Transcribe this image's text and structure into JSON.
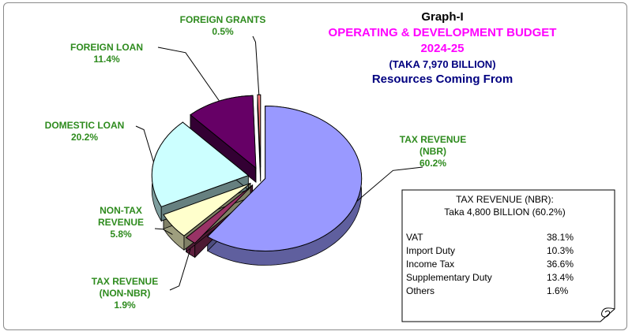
{
  "chart_data": {
    "type": "pie",
    "title": "Graph-I",
    "subtitle_lines": [
      "OPERATING & DEVELOPMENT BUDGET",
      "2024-25",
      "(TAKA 7,970 BILLION)",
      "Resources Coming From"
    ],
    "slices": [
      {
        "label_lines": [
          "TAX REVENUE",
          "(NBR)"
        ],
        "pct_text": "60.2%",
        "value": 60.2,
        "color": "#9999ff"
      },
      {
        "label_lines": [
          "TAX REVENUE",
          "(NON-NBR)"
        ],
        "pct_text": "1.9%",
        "value": 1.9,
        "color": "#993366"
      },
      {
        "label_lines": [
          "NON-TAX",
          "REVENUE"
        ],
        "pct_text": "5.8%",
        "value": 5.8,
        "color": "#ffffcc"
      },
      {
        "label_lines": [
          "DOMESTIC LOAN"
        ],
        "pct_text": "20.2%",
        "value": 20.2,
        "color": "#ccffff"
      },
      {
        "label_lines": [
          "FOREIGN LOAN"
        ],
        "pct_text": "11.4%",
        "value": 11.4,
        "color": "#660066"
      },
      {
        "label_lines": [
          "FOREIGN  GRANTS"
        ],
        "pct_text": "0.5%",
        "value": 0.5,
        "color": "#ff8080"
      }
    ],
    "legend": "none"
  },
  "colors": {
    "title_magenta": "#ff00ff",
    "title_navy": "#000080",
    "label_green": "#2e8b1e"
  },
  "note": {
    "heading": "TAX REVENUE (NBR):",
    "subheading": "Taka  4,800 BILLION  (60.2%)",
    "rows": [
      {
        "name": "VAT",
        "value": "38.1%"
      },
      {
        "name": "Import Duty",
        "value": "10.3%"
      },
      {
        "name": "Income Tax",
        "value": "36.6%"
      },
      {
        "name": "Supplementary Duty",
        "value": "13.4%"
      },
      {
        "name": "Others",
        "value": "1.6%"
      }
    ]
  }
}
